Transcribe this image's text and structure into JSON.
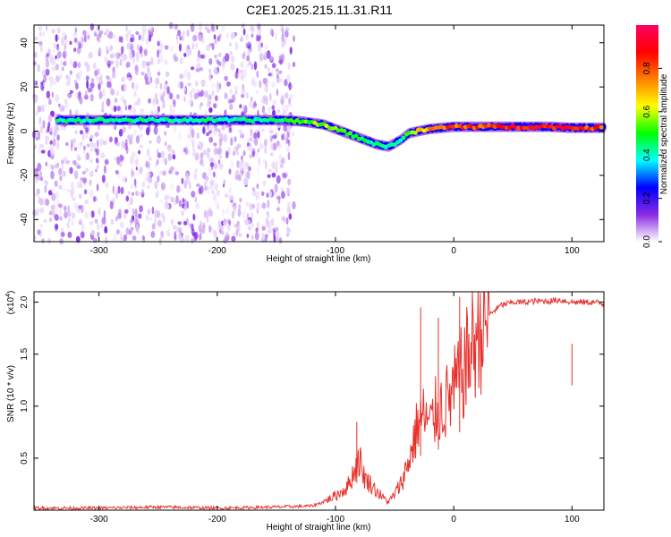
{
  "title": "C2E1.2025.215.11.31.R11",
  "chart_data": [
    {
      "type": "heatmap",
      "title": "C2E1.2025.215.11.31.R11",
      "xlabel": "Height of straight line (km)",
      "ylabel": "Frequency (Hz)",
      "xlim": [
        -355,
        127
      ],
      "ylim": [
        -50,
        48
      ],
      "xticks": [
        -300,
        -200,
        -100,
        0,
        100
      ],
      "yticks": [
        -40,
        -20,
        0,
        20,
        40
      ],
      "colorbar": {
        "label": "Normalized spectral amplitude",
        "range": [
          0,
          1
        ],
        "ticks": [
          "0.0",
          "0.2",
          "0.4",
          "0.6",
          "0.8"
        ],
        "tick_values": [
          0.0,
          0.2,
          0.4,
          0.6,
          0.8
        ],
        "colors": [
          "#ffffff",
          "#8a2be2",
          "#0000ff",
          "#00ffff",
          "#00ff00",
          "#ffff00",
          "#ff8000",
          "#ff0000",
          "#ff0066"
        ]
      },
      "noise_region_x": [
        -355,
        -135
      ],
      "signal_trace": {
        "x": [
          -335,
          -300,
          -250,
          -200,
          -150,
          -130,
          -110,
          -95,
          -80,
          -65,
          -55,
          -45,
          -38,
          -30,
          -20,
          -10,
          0,
          20,
          50,
          80,
          100,
          127
        ],
        "y": [
          5,
          5,
          5,
          5,
          5,
          4.5,
          3,
          0,
          -3,
          -6,
          -7,
          -4,
          -1,
          0,
          1,
          1.5,
          2,
          2,
          2,
          2,
          1.5,
          1.5
        ],
        "amplitude": [
          0.45,
          0.45,
          0.45,
          0.45,
          0.45,
          0.55,
          0.6,
          0.55,
          0.5,
          0.45,
          0.45,
          0.45,
          0.55,
          0.7,
          0.75,
          0.8,
          0.85,
          0.85,
          0.9,
          0.95,
          0.9,
          0.85
        ]
      }
    },
    {
      "type": "line",
      "xlabel": "Height of straight line (km)",
      "ylabel": "SNR (10 * v/v)",
      "y_multiplier": "(x10",
      "y_multiplier_exp": "4",
      "xlim": [
        -355,
        127
      ],
      "ylim": [
        0,
        2.1
      ],
      "xticks": [
        -300,
        -200,
        -100,
        0,
        100
      ],
      "yticks": [
        0.5,
        1.0,
        1.5,
        2.0
      ],
      "ytick_labels": [
        "0.5",
        "1.0",
        "1.5",
        "2.0"
      ],
      "color": "#e8302a",
      "x": [
        -355,
        -300,
        -250,
        -200,
        -150,
        -120,
        -110,
        -100,
        -90,
        -85,
        -80,
        -75,
        -70,
        -65,
        -60,
        -55,
        -50,
        -45,
        -40,
        -35,
        -30,
        -25,
        -20,
        -15,
        -10,
        -5,
        0,
        5,
        10,
        15,
        20,
        25,
        30,
        40,
        50,
        60,
        70,
        80,
        90,
        100,
        110,
        120,
        127
      ],
      "y": [
        0.02,
        0.02,
        0.03,
        0.02,
        0.03,
        0.04,
        0.08,
        0.14,
        0.22,
        0.35,
        0.5,
        0.3,
        0.25,
        0.18,
        0.12,
        0.08,
        0.15,
        0.25,
        0.4,
        0.6,
        0.85,
        0.9,
        0.8,
        0.95,
        1.0,
        1.05,
        1.15,
        1.25,
        1.4,
        1.55,
        1.7,
        1.8,
        1.88,
        1.97,
        2.0,
        2.0,
        2.01,
        2.01,
        2.02,
        2.0,
        2.0,
        2.0,
        1.98
      ],
      "annotations": [
        {
          "x": -82,
          "y": 0.85
        },
        {
          "x": -28,
          "y": 1.95
        },
        {
          "x": -13,
          "y": 1.85
        },
        {
          "x": 5,
          "y": 2.05
        },
        {
          "x": 100,
          "y": 1.6
        }
      ]
    }
  ]
}
